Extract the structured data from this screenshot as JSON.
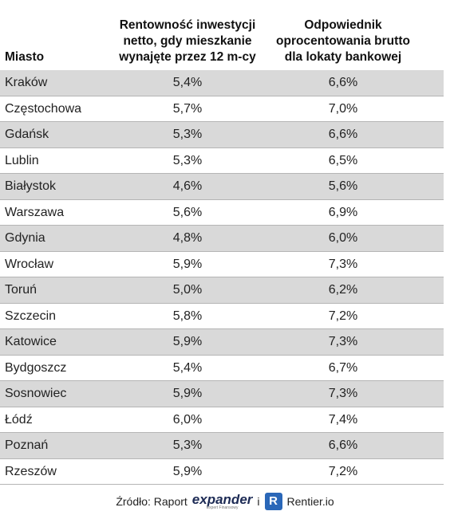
{
  "table": {
    "header": {
      "city": "Miasto",
      "col1": [
        "Rentowność inwestycji",
        "netto, gdy mieszkanie",
        "wynajęte przez 12 m-cy"
      ],
      "col2": [
        "Odpowiednik",
        "oprocentowania brutto",
        "dla lokaty bankowej"
      ]
    },
    "rows": [
      [
        "Kraków",
        "5,4%",
        "6,6%"
      ],
      [
        "Częstochowa",
        "5,7%",
        "7,0%"
      ],
      [
        "Gdańsk",
        "5,3%",
        "6,6%"
      ],
      [
        "Lublin",
        "5,3%",
        "6,5%"
      ],
      [
        "Białystok",
        "4,6%",
        "5,6%"
      ],
      [
        "Warszawa",
        "5,6%",
        "6,9%"
      ],
      [
        "Gdynia",
        "4,8%",
        "6,0%"
      ],
      [
        "Wrocław",
        "5,9%",
        "7,3%"
      ],
      [
        "Toruń",
        "5,0%",
        "6,2%"
      ],
      [
        "Szczecin",
        "5,8%",
        "7,2%"
      ],
      [
        "Katowice",
        "5,9%",
        "7,3%"
      ],
      [
        "Bydgoszcz",
        "5,4%",
        "6,7%"
      ],
      [
        "Sosnowiec",
        "5,9%",
        "7,3%"
      ],
      [
        "Łódź",
        "6,0%",
        "7,4%"
      ],
      [
        "Poznań",
        "5,3%",
        "6,6%"
      ],
      [
        "Rzeszów",
        "5,9%",
        "7,2%"
      ]
    ]
  },
  "footer": {
    "source": "Źródło: Raport",
    "logo1": "expander",
    "logo1_sub": "Expert Finansowy",
    "joiner": "i",
    "logo2_icon": "R",
    "logo2": "Rentier.io"
  }
}
